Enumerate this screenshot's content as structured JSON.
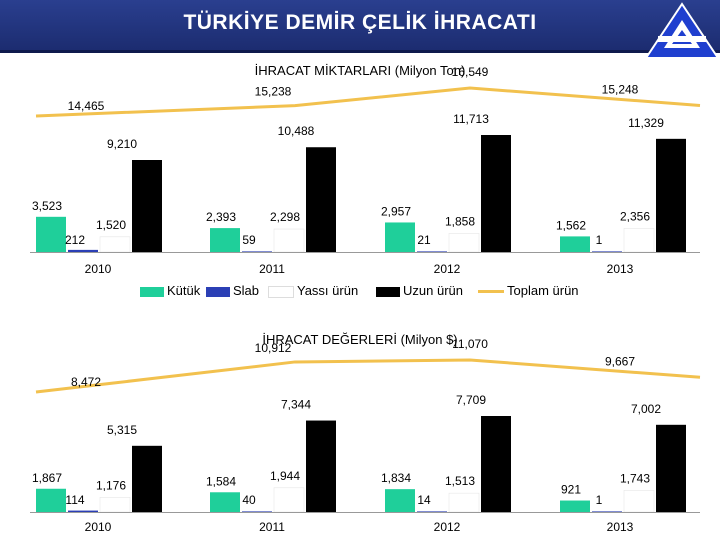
{
  "header": {
    "title": "TÜRKİYE DEMİR ÇELİK İHRACATI",
    "logo_icon": "triangle-a-logo"
  },
  "colors": {
    "kutuk": "#1fcf9a",
    "slab": "#2b3fb5",
    "yassi": "#ffffff",
    "uzun": "#000000",
    "toplam": "#f2c14e",
    "header": "#22357f"
  },
  "legend": {
    "items": [
      {
        "key": "kutuk",
        "label": "Kütük",
        "kind": "bar"
      },
      {
        "key": "slab",
        "label": "Slab",
        "kind": "bar"
      },
      {
        "key": "yassi",
        "label": "Yassı ürün",
        "kind": "bar"
      },
      {
        "key": "uzun",
        "label": "Uzun ürün",
        "kind": "bar"
      },
      {
        "key": "toplam",
        "label": "Toplam ürün",
        "kind": "line"
      }
    ]
  },
  "chart_data": [
    {
      "type": "bar",
      "title": "İHRACAT MİKTARLARI (Milyon Ton)",
      "categories": [
        "2010",
        "2011",
        "2012",
        "2013"
      ],
      "series": [
        {
          "name": "Kütük",
          "values": [
            3.523,
            2.393,
            2.957,
            1.562
          ],
          "labels": [
            "3,523",
            "2,393",
            "2,957",
            "1,562"
          ]
        },
        {
          "name": "Slab",
          "values": [
            0.212,
            0.059,
            0.021,
            0.001
          ],
          "labels": [
            "212",
            "59",
            "21",
            "1"
          ]
        },
        {
          "name": "Yassı ürün",
          "values": [
            1.52,
            2.298,
            1.858,
            2.356
          ],
          "labels": [
            "1,520",
            "2,298",
            "1,858",
            "2,356"
          ]
        },
        {
          "name": "Uzun ürün",
          "values": [
            9.21,
            10.488,
            11.713,
            11.329
          ],
          "labels": [
            "9,210",
            "10,488",
            "11,713",
            "11,329"
          ]
        }
      ],
      "line": {
        "name": "Toplam ürün",
        "values": [
          14.465,
          15.238,
          16.549,
          15.248
        ],
        "labels": [
          "14,465",
          "15,238",
          "16,549",
          "15,248"
        ]
      }
    },
    {
      "type": "bar",
      "title": "İHRACAT DEĞERLERİ (Milyon $)",
      "categories": [
        "2010",
        "2011",
        "2012",
        "2013"
      ],
      "series": [
        {
          "name": "Kütük",
          "values": [
            1867,
            1584,
            1834,
            921
          ],
          "labels": [
            "1,867",
            "1,584",
            "1,834",
            "921"
          ]
        },
        {
          "name": "Slab",
          "values": [
            114,
            40,
            14,
            1
          ],
          "labels": [
            "114",
            "40",
            "14",
            "1"
          ]
        },
        {
          "name": "Yassı ürün",
          "values": [
            1176,
            1944,
            1513,
            1743
          ],
          "labels": [
            "1,176",
            "1,944",
            "1,513",
            "1,743"
          ]
        },
        {
          "name": "Uzun ürün",
          "values": [
            5315,
            7344,
            7709,
            7002
          ],
          "labels": [
            "5,315",
            "7,344",
            "7,709",
            "7,002"
          ]
        }
      ],
      "line": {
        "name": "Toplam ürün",
        "values": [
          8472,
          10912,
          11070,
          9667
        ],
        "labels": [
          "8,472",
          "10,912",
          "11,070",
          "9,667"
        ]
      }
    }
  ]
}
